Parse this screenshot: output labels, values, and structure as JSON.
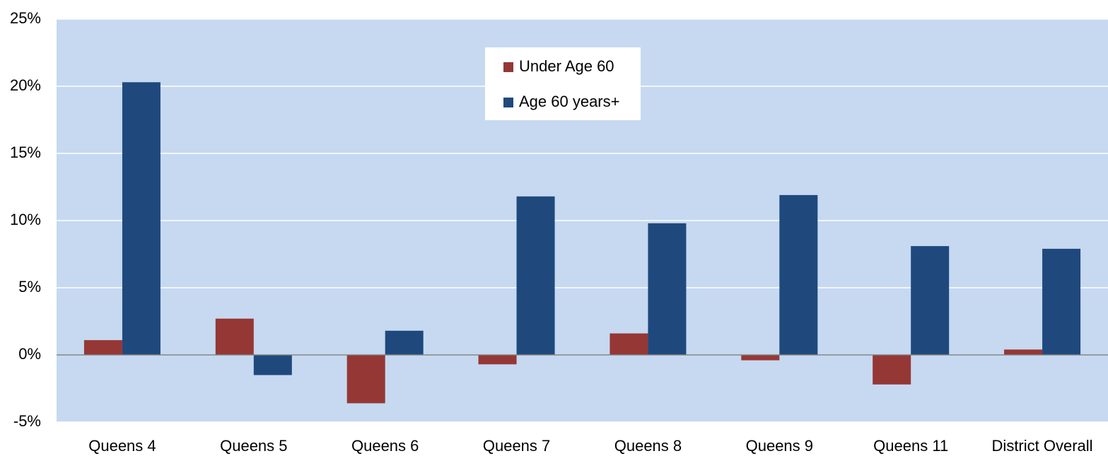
{
  "chart_data": {
    "type": "bar",
    "categories": [
      "Queens 4",
      "Queens 5",
      "Queens 6",
      "Queens 7",
      "Queens 8",
      "Queens 9",
      "Queens 11",
      "District Overall"
    ],
    "series": [
      {
        "name": "Under Age 60",
        "color": "#953735",
        "values": [
          1.1,
          2.7,
          -3.6,
          -0.7,
          1.6,
          -0.4,
          -2.2,
          0.4
        ]
      },
      {
        "name": "Age 60 years+",
        "color": "#1f497d",
        "values": [
          20.3,
          -1.5,
          1.8,
          11.8,
          9.8,
          11.9,
          8.1,
          7.9
        ]
      }
    ],
    "ylim": [
      -5,
      25
    ],
    "yticks": [
      {
        "value": -5,
        "label": "-5%"
      },
      {
        "value": 0,
        "label": "0%"
      },
      {
        "value": 5,
        "label": "5%"
      },
      {
        "value": 10,
        "label": "10%"
      },
      {
        "value": 15,
        "label": "15%"
      },
      {
        "value": 20,
        "label": "20%"
      },
      {
        "value": 25,
        "label": "25%"
      }
    ],
    "grid": true,
    "legend": "top"
  }
}
